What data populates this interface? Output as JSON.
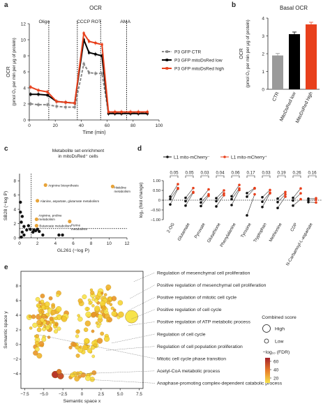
{
  "panels": {
    "a": "a",
    "b": "b",
    "c": "c",
    "d": "d",
    "e": "e"
  },
  "chart_data": [
    {
      "panel": "a",
      "type": "line",
      "title": "OCR",
      "xlabel": "Time (min)",
      "ylabel_line1": "OCR",
      "ylabel_line2": "(pmol O₂ per min per μg of protein)",
      "xlim": [
        0,
        100
      ],
      "ylim": [
        0,
        12
      ],
      "xticks": [
        "0",
        "20",
        "40",
        "60",
        "80",
        "100"
      ],
      "yticks": [
        "0",
        "2",
        "4",
        "6",
        "8",
        "10",
        "12"
      ],
      "annotations": [
        "Oligo",
        "CCCP ROT",
        "AMA"
      ],
      "injections": [
        15,
        37,
        55,
        75
      ],
      "series": [
        {
          "name": "P3 GFP CTR",
          "color": "#888888",
          "dashed": true,
          "x": [
            1,
            7,
            14,
            21,
            28,
            35,
            42,
            46,
            51,
            56,
            61,
            66,
            71,
            78,
            84,
            91
          ],
          "y": [
            2.0,
            1.9,
            1.9,
            1.7,
            1.6,
            1.6,
            7.0,
            5.9,
            5.8,
            5.8,
            0.9,
            0.9,
            0.9,
            0.9,
            0.9,
            0.9
          ]
        },
        {
          "name": "P3 GFP mitoDsRed low",
          "color": "#000000",
          "dashed": false,
          "x": [
            1,
            7,
            14,
            21,
            28,
            35,
            42,
            46,
            51,
            56,
            61,
            66,
            71,
            78,
            84,
            91
          ],
          "y": [
            3.2,
            3.2,
            3.1,
            2.3,
            2.2,
            2.1,
            10.0,
            8.4,
            8.2,
            8.0,
            0.8,
            0.8,
            0.8,
            0.8,
            0.8,
            0.8
          ]
        },
        {
          "name": "P3 GFP mitoDsRed high",
          "color": "#e8401c",
          "dashed": false,
          "x": [
            1,
            7,
            14,
            21,
            28,
            35,
            42,
            46,
            51,
            56,
            61,
            66,
            71,
            78,
            84,
            91
          ],
          "y": [
            4.1,
            3.7,
            3.5,
            2.3,
            2.2,
            2.1,
            10.8,
            9.8,
            9.6,
            9.4,
            1.0,
            1.0,
            1.0,
            1.0,
            1.0,
            1.0
          ]
        }
      ]
    },
    {
      "panel": "b",
      "type": "bar",
      "title": "Basal OCR",
      "ylabel_line1": "OCR",
      "ylabel_line2": "(pmol O₂ per min per μg of protein)",
      "ylim": [
        0,
        4
      ],
      "yticks": [
        "0",
        "1",
        "2",
        "3",
        "4"
      ],
      "categories": [
        "CTR",
        "MitoDsRed low",
        "MitoDsRed high"
      ],
      "values": [
        1.9,
        3.1,
        3.65
      ],
      "colors": [
        "#9a9a9a",
        "#000000",
        "#e8401c"
      ]
    },
    {
      "panel": "c",
      "type": "scatter",
      "title_line1": "Metabolite set enrichment",
      "title_line2": "in mitoDsRed⁺ cells",
      "xlabel": "GL261 (−log P)",
      "ylabel": "SB28 (−log P)",
      "xlim": [
        0,
        12
      ],
      "ylim": [
        0,
        9
      ],
      "xticks": [
        "0",
        "2",
        "4",
        "6",
        "8",
        "10",
        "12"
      ],
      "yticks": [
        "0",
        "2",
        "4",
        "6",
        "8"
      ],
      "threshold": 1.3,
      "points": [
        {
          "x": 2.9,
          "y": 7.4,
          "label": "Arginine biosynthesis",
          "color": "#e8a43a",
          "r": 2.6
        },
        {
          "x": 10.4,
          "y": 7.2,
          "label": "Histidine metabolism",
          "color": "#e8a43a",
          "r": 2.6
        },
        {
          "x": 2.0,
          "y": 5.2,
          "label": "Alanine, aspartate, glutamate metabolism",
          "color": "#e8a43a",
          "r": 2.6
        },
        {
          "x": 1.9,
          "y": 2.6,
          "label": "Arginine, proline metabolism",
          "color": "#e8a43a",
          "r": 2.6
        },
        {
          "x": 1.9,
          "y": 1.7,
          "label": "Butanoate metabolism",
          "color": "#e8a43a",
          "r": 2.6
        },
        {
          "x": 5.6,
          "y": 2.3,
          "label": "Purine metabolism",
          "color": "#e8a43a",
          "r": 2.6
        },
        {
          "x": 0.1,
          "y": 5.0,
          "color": "#111111",
          "r": 2.2
        },
        {
          "x": 0.1,
          "y": 3.6,
          "color": "#111111",
          "r": 2.2
        },
        {
          "x": 0.3,
          "y": 3.0,
          "color": "#111111",
          "r": 2.2
        },
        {
          "x": 0.2,
          "y": 2.2,
          "color": "#111111",
          "r": 2.2
        },
        {
          "x": 0.5,
          "y": 1.6,
          "color": "#111111",
          "r": 2.2
        },
        {
          "x": 0.8,
          "y": 1.1,
          "color": "#111111",
          "r": 2.2
        },
        {
          "x": 1.0,
          "y": 1.7,
          "color": "#111111",
          "r": 2.2
        },
        {
          "x": 1.2,
          "y": 1.2,
          "color": "#111111",
          "r": 2.2
        },
        {
          "x": 0.3,
          "y": 0.8,
          "color": "#111111",
          "r": 2.2
        },
        {
          "x": 0.5,
          "y": 0.4,
          "color": "#111111",
          "r": 2.2
        },
        {
          "x": 1.6,
          "y": 1.1,
          "color": "#111111",
          "r": 2.2
        },
        {
          "x": 1.8,
          "y": 1.0,
          "color": "#111111",
          "r": 2.2
        },
        {
          "x": 2.0,
          "y": 1.2,
          "color": "#111111",
          "r": 2.2
        },
        {
          "x": 2.2,
          "y": 0.9,
          "color": "#111111",
          "r": 2.2
        },
        {
          "x": 1.5,
          "y": 0.8,
          "color": "#111111",
          "r": 2.2
        },
        {
          "x": 2.6,
          "y": 0.4,
          "color": "#111111",
          "r": 2.2
        },
        {
          "x": 4.4,
          "y": 0.4,
          "color": "#111111",
          "r": 2.2
        },
        {
          "x": 4.8,
          "y": 0.4,
          "color": "#111111",
          "r": 2.2
        },
        {
          "x": 0.2,
          "y": 0.1,
          "color": "#111111",
          "r": 2.2
        }
      ]
    },
    {
      "panel": "d",
      "type": "scatter",
      "legend": [
        "L1 mito-mCherry⁻",
        "L1 mito-mCherry⁺"
      ],
      "legend_colors": [
        "#111111",
        "#e8401c"
      ],
      "ylabel": "log₂ (fold change)",
      "ylim": [
        -1.0,
        1.0
      ],
      "yticks": [
        "−1.00",
        "−0.50",
        "0",
        "0.50",
        "1.00"
      ],
      "categories": [
        "2-OG",
        "Glutamate",
        "Pyruvate",
        "Glutathione",
        "Phenylalanine",
        "Tyrosine",
        "Tryptophan",
        "Methionine",
        "CDP",
        "N-Carbamoyl-L-aspartate"
      ],
      "pvalues": [
        "0.05",
        "0.05",
        "0.03",
        "0.04",
        "0.06",
        "0.17",
        "0.03",
        "0.19",
        "0.26",
        "0.16"
      ],
      "neg": [
        [
          -0.22,
          0.05,
          0.18
        ],
        [
          -0.28,
          -0.05,
          0.12
        ],
        [
          -0.3,
          -0.12,
          0.05
        ],
        [
          -0.32,
          -0.05,
          0.1
        ],
        [
          -0.25,
          0.05,
          0.2
        ],
        [
          -0.78,
          0.18,
          0.36
        ],
        [
          -0.35,
          -0.08,
          0.15
        ],
        [
          -0.4,
          -0.1,
          0.08
        ],
        [
          -0.28,
          -0.02,
          0.12
        ],
        [
          -0.1,
          0.0,
          0.08
        ]
      ],
      "pos": [
        [
          0.58,
          0.62,
          0.82
        ],
        [
          0.38,
          0.42,
          0.62
        ],
        [
          0.22,
          0.3,
          0.55
        ],
        [
          0.25,
          0.35,
          0.5
        ],
        [
          0.52,
          0.6,
          0.78
        ],
        [
          0.3,
          0.6,
          0.62
        ],
        [
          0.35,
          0.38,
          0.52
        ],
        [
          0.18,
          0.3,
          0.42
        ],
        [
          0.05,
          0.35,
          0.6
        ],
        [
          -0.12,
          0.02,
          0.1
        ]
      ]
    },
    {
      "panel": "e",
      "type": "scatter",
      "xlabel": "Semantic space x",
      "ylabel": "Semantic space y",
      "xlim": [
        -8,
        8
      ],
      "ylim": [
        -6,
        10
      ],
      "xticks": [
        "−7.5",
        "−5.0",
        "−2.5",
        "0",
        "2.5",
        "5.0",
        "7.5"
      ],
      "yticks": [
        "−4",
        "−2",
        "0",
        "2",
        "4",
        "6",
        "8"
      ],
      "size_legend_title": "Combined score",
      "size_legend": [
        "High",
        "Low"
      ],
      "color_legend_title": "−log₁₀ (FDR)",
      "color_legend": [
        "60",
        "40",
        "20"
      ],
      "terms": [
        "Regulation of mesenchymal cell proliferation",
        "Positive regulation of mesenchymal cell proliferation",
        "Positive regulation of mitotic cell cycle",
        "Positive regulation of cell cycle",
        "Positive regulation of ATP metabolic process",
        "Regulation of cell cycle",
        "Regulation of cell population proliferation",
        "Mitotic cell cycle phase transition",
        "Acetyl-CoA metabolic process",
        "Anaphase-promoting complex-dependent catabolic process"
      ]
    }
  ]
}
